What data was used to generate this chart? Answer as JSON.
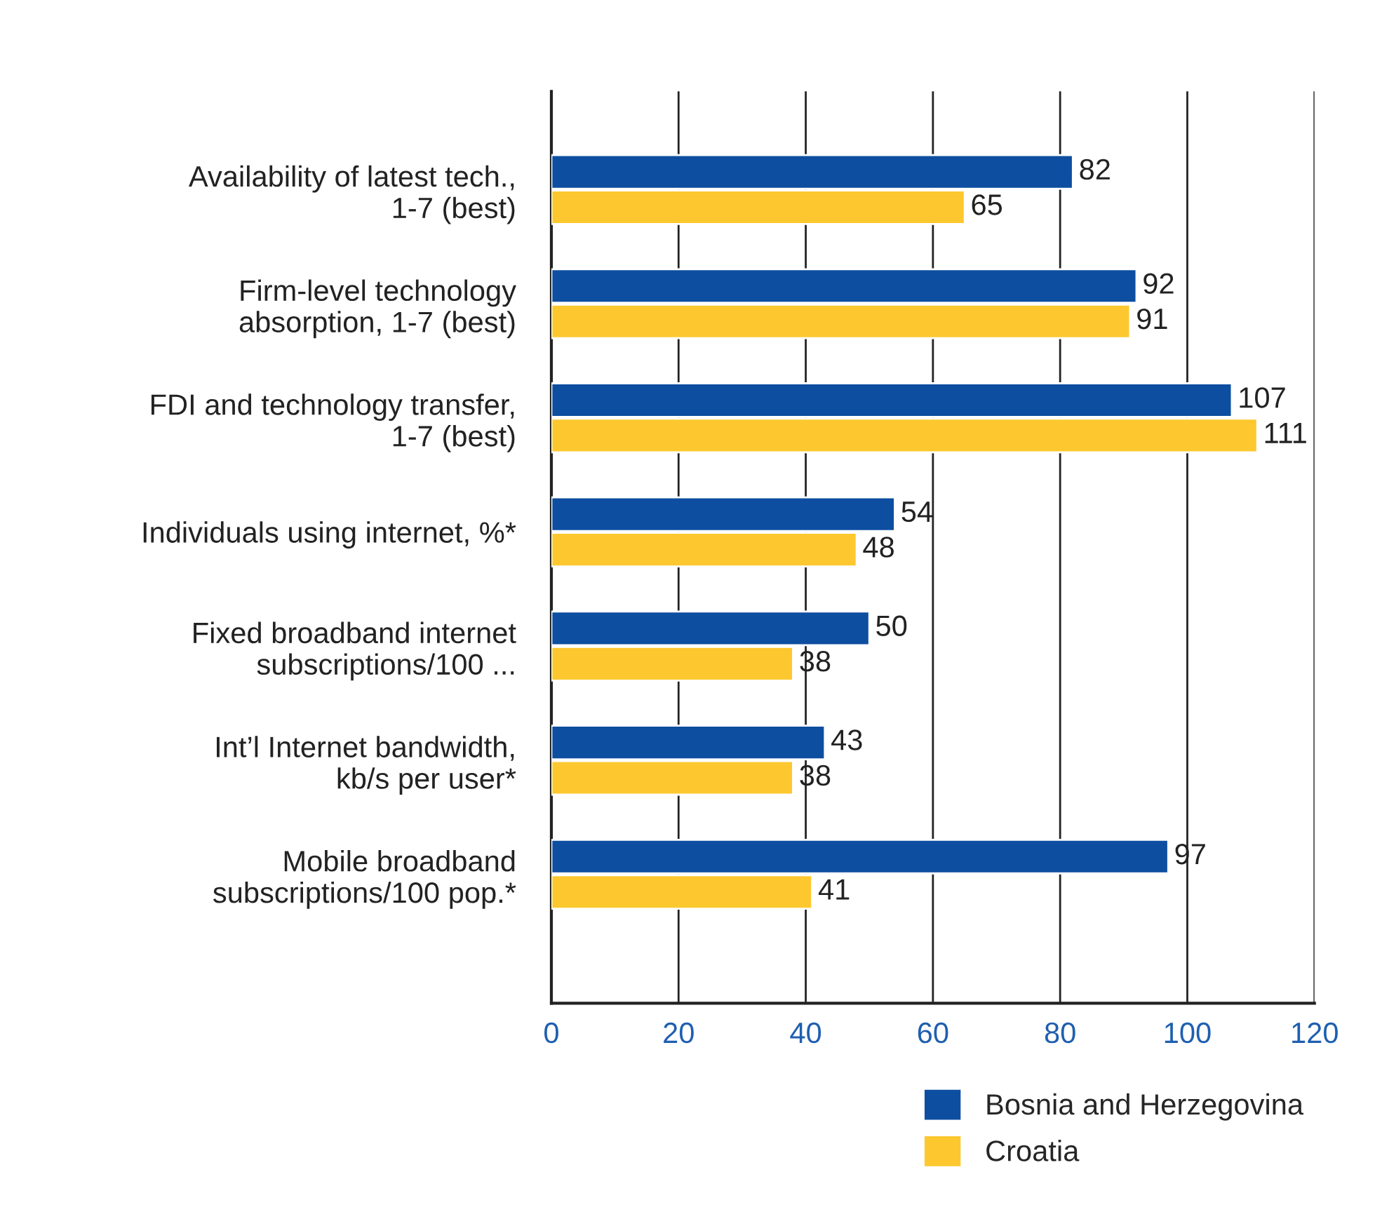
{
  "chart_data": {
    "type": "bar",
    "orientation": "horizontal",
    "categories": [
      "Availability of latest tech.,\n1-7 (best)",
      "Firm-level technology\nabsorption, 1-7 (best)",
      "FDI and technology transfer,\n1-7 (best)",
      "Individuals using internet, %*",
      "Fixed broadband internet\nsubscriptions/100 ...",
      "Int’l Internet bandwidth,\nkb/s per user*",
      "Mobile broadband\nsubscriptions/100 pop.*"
    ],
    "series": [
      {
        "name": "Bosnia and Herzegovina",
        "color": "#0d4ea0",
        "values": [
          82,
          92,
          107,
          54,
          50,
          43,
          97
        ]
      },
      {
        "name": "Croatia",
        "color": "#fdc82f",
        "values": [
          65,
          91,
          111,
          48,
          38,
          38,
          41
        ]
      }
    ],
    "xlim": [
      0,
      120
    ],
    "xticks": [
      0,
      20,
      40,
      60,
      80,
      100,
      120
    ],
    "grid": "x",
    "legend": "bottom right",
    "data_labels": true
  }
}
